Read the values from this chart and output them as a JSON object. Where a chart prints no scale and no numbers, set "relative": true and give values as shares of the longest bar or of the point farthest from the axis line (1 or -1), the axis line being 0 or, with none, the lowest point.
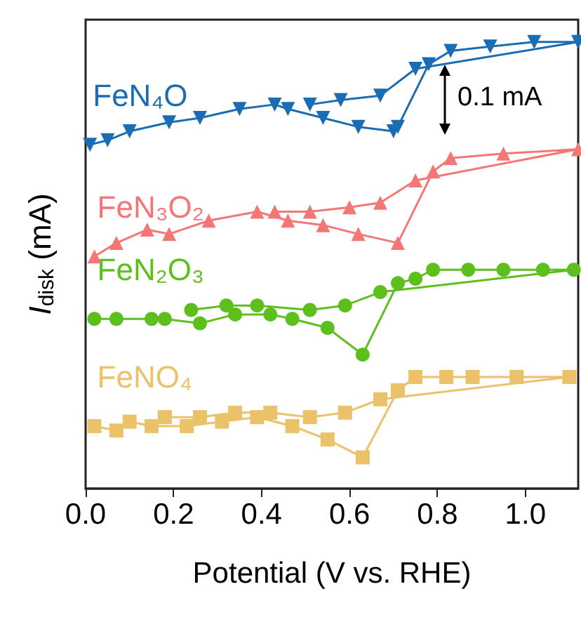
{
  "chart_data": {
    "type": "line",
    "relative": true,
    "xlabel": "Potential (V vs. RHE)",
    "ylabel": "I$_{disk}$ (mA)",
    "xlim": [
      0,
      1.12
    ],
    "xticks": [
      {
        "value": 0,
        "label": "0.0"
      },
      {
        "value": 0.2,
        "label": "0.2"
      },
      {
        "value": 0.4,
        "label": "0.4"
      },
      {
        "value": 0.6,
        "label": "0.6"
      },
      {
        "value": 0.8,
        "label": "0.8"
      },
      {
        "value": 1,
        "label": "1.0"
      }
    ],
    "tick_labels": "x",
    "grid": false,
    "annotations": [
      "0.1 mA"
    ],
    "series": [
      {
        "name": "FeN₄O",
        "color": "#1a6db3",
        "marker": "triangle-down",
        "x": [
          0.01,
          0.05,
          0.1,
          0.19,
          0.26,
          0.35,
          0.43,
          0.46,
          0.54,
          0.62,
          0.7,
          0.71,
          0.78,
          0.83,
          0.92,
          1.02,
          1.12,
          0.75,
          0.67,
          0.58,
          0.51
        ],
        "values": [
          0.77,
          0.78,
          0.8,
          0.82,
          0.83,
          0.85,
          0.86,
          0.85,
          0.83,
          0.81,
          0.8,
          0.81,
          0.95,
          0.98,
          0.99,
          1,
          1,
          0.94,
          0.88,
          0.87,
          0.86
        ]
      },
      {
        "name": "FeN₃O₂",
        "color": "#f57676",
        "marker": "triangle",
        "x": [
          0.02,
          0.07,
          0.14,
          0.19,
          0.28,
          0.39,
          0.46,
          0.54,
          0.62,
          0.71,
          0.79,
          0.83,
          0.95,
          1.12,
          0.75,
          0.67,
          0.6,
          0.51,
          0.43
        ],
        "values": [
          0.52,
          0.55,
          0.58,
          0.57,
          0.6,
          0.62,
          0.6,
          0.59,
          0.57,
          0.55,
          0.71,
          0.74,
          0.75,
          0.76,
          0.69,
          0.64,
          0.63,
          0.62,
          0.62
        ]
      },
      {
        "name": "FeN₂O₃",
        "color": "#5cbf1c",
        "marker": "circle",
        "x": [
          0.02,
          0.07,
          0.15,
          0.18,
          0.26,
          0.34,
          0.42,
          0.47,
          0.55,
          0.63,
          0.71,
          0.75,
          0.79,
          0.87,
          0.95,
          1.04,
          1.11,
          0.67,
          0.59,
          0.51,
          0.39,
          0.32,
          0.24
        ],
        "values": [
          0.38,
          0.38,
          0.38,
          0.38,
          0.37,
          0.39,
          0.39,
          0.38,
          0.36,
          0.3,
          0.46,
          0.47,
          0.49,
          0.49,
          0.49,
          0.49,
          0.49,
          0.44,
          0.41,
          0.4,
          0.41,
          0.41,
          0.4
        ]
      },
      {
        "name": "FeNO₄",
        "color": "#ebc16a",
        "marker": "square",
        "x": [
          0.02,
          0.07,
          0.1,
          0.15,
          0.23,
          0.31,
          0.39,
          0.47,
          0.55,
          0.63,
          0.71,
          0.75,
          0.82,
          0.88,
          0.98,
          1.1,
          0.67,
          0.59,
          0.51,
          0.42,
          0.34,
          0.26,
          0.18
        ],
        "values": [
          0.14,
          0.13,
          0.15,
          0.14,
          0.14,
          0.15,
          0.16,
          0.14,
          0.11,
          0.07,
          0.22,
          0.25,
          0.25,
          0.25,
          0.25,
          0.25,
          0.2,
          0.17,
          0.16,
          0.17,
          0.17,
          0.16,
          0.16
        ]
      }
    ]
  }
}
